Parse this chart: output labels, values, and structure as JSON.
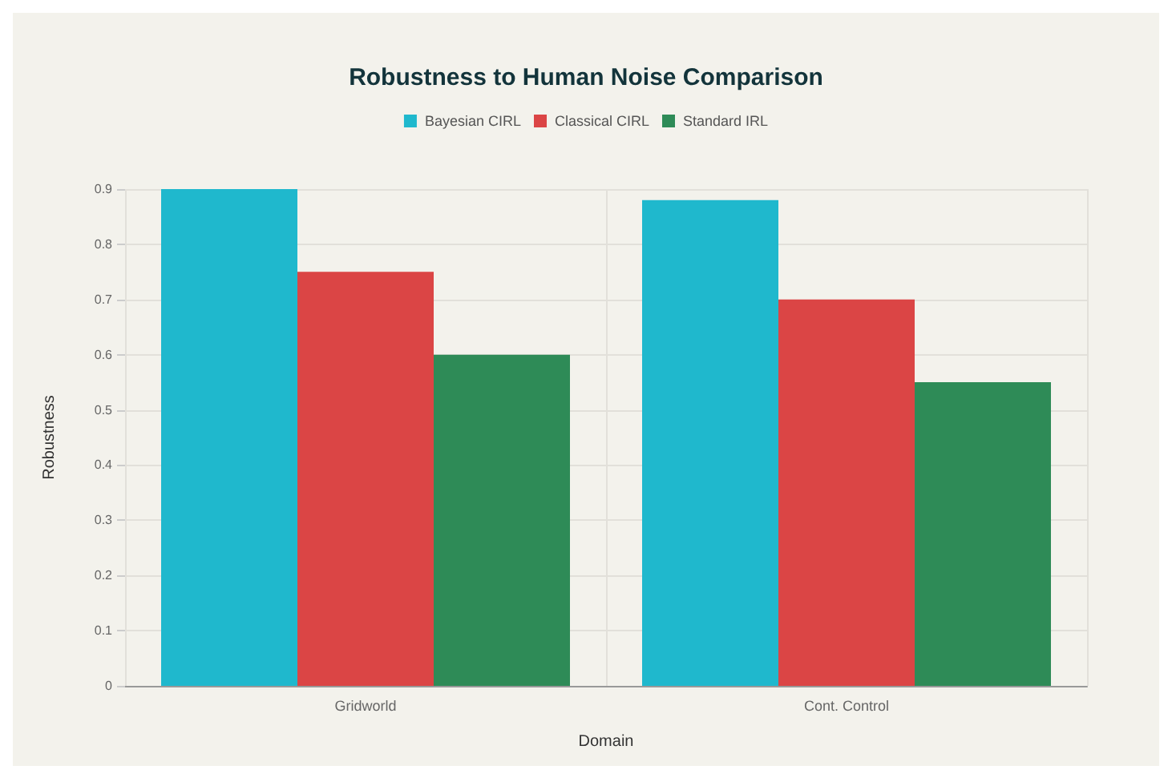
{
  "chart_data": {
    "type": "bar",
    "title": "Robustness to Human Noise Comparison",
    "xlabel": "Domain",
    "ylabel": "Robustness",
    "categories": [
      "Gridworld",
      "Cont. Control"
    ],
    "series": [
      {
        "name": "Bayesian CIRL",
        "color": "#1fb8cd",
        "values": [
          0.9,
          0.88
        ]
      },
      {
        "name": "Classical CIRL",
        "color": "#db4545",
        "values": [
          0.75,
          0.7
        ]
      },
      {
        "name": "Standard IRL",
        "color": "#2e8b57",
        "values": [
          0.6,
          0.55
        ]
      }
    ],
    "ylim": [
      0,
      0.9
    ],
    "yticks": [
      0,
      0.1,
      0.2,
      0.3,
      0.4,
      0.5,
      0.6,
      0.7,
      0.8,
      0.9
    ],
    "grid": true,
    "legend": "top"
  }
}
